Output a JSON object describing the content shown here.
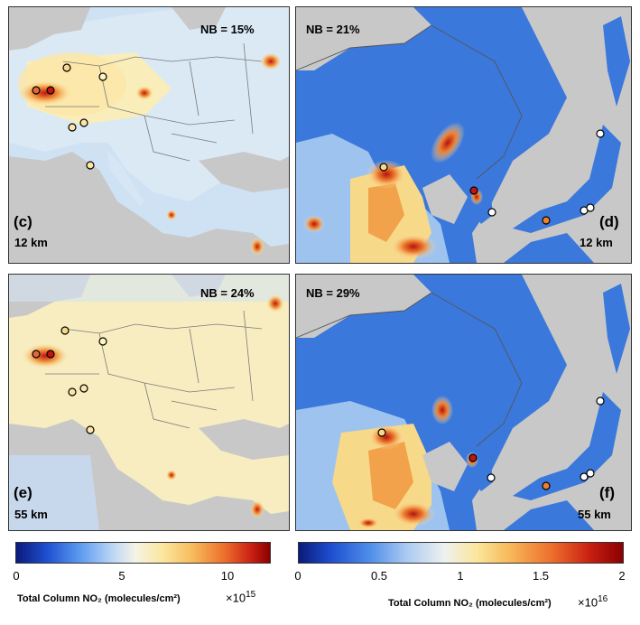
{
  "panels": [
    {
      "id": "c",
      "label": "(c)",
      "resolution": "12 km",
      "nb": "NB = 15%"
    },
    {
      "id": "d",
      "label": "(d)",
      "resolution": "12 km",
      "nb": "NB = 21%"
    },
    {
      "id": "e",
      "label": "(e)",
      "resolution": "55 km",
      "nb": "NB = 24%"
    },
    {
      "id": "f",
      "label": "(f)",
      "resolution": "55 km",
      "nb": "NB = 29%"
    }
  ],
  "colorbars": [
    {
      "ticks": [
        "0",
        "5",
        "10"
      ],
      "tick_values": [
        0,
        5,
        10
      ],
      "max": 12,
      "caption": "Total Column NO₂ (molecules/cm²)",
      "multiplier_base": "×10",
      "multiplier_exp": "15"
    },
    {
      "ticks": [
        "0",
        "0.5",
        "1",
        "1.5",
        "2"
      ],
      "tick_values": [
        0,
        0.5,
        1,
        1.5,
        2
      ],
      "max": 2,
      "caption": "Total Column NO₂ (molecules/cm²)",
      "multiplier_base": "×10",
      "multiplier_exp": "16"
    }
  ],
  "colors": {
    "land_gray": "#c8c8c8",
    "ocean_gray": "#c9c9c9",
    "low": "#3b6fd6",
    "mid": "#fbf2bf",
    "high": "#b3140f"
  }
}
